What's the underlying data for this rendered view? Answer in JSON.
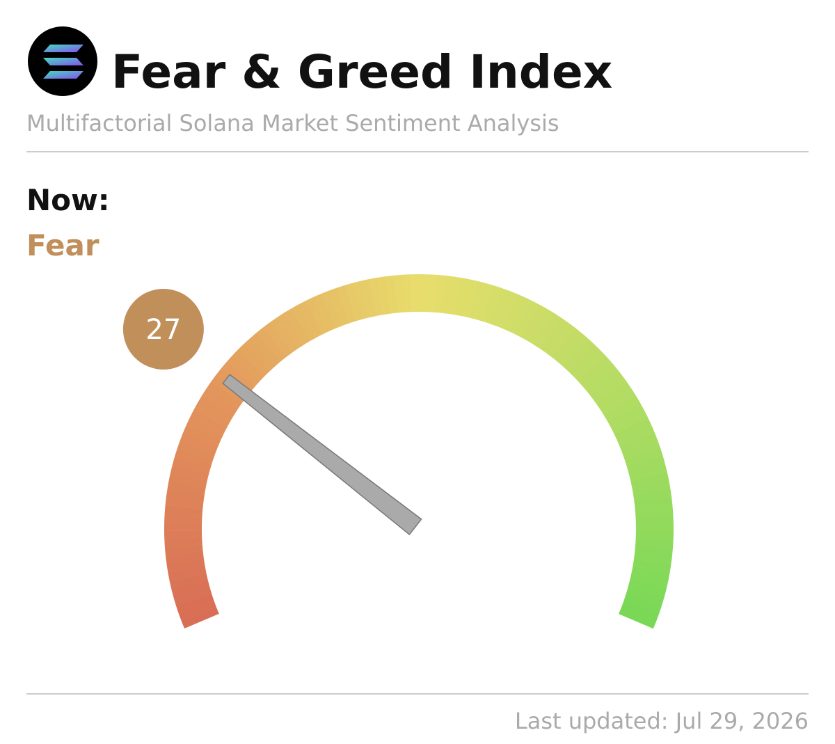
{
  "header": {
    "title": "Fear & Greed Index",
    "subtitle": "Multifactorial Solana Market Sentiment Analysis"
  },
  "now_label": "Now:",
  "status": "Fear",
  "status_color": "#c08f5a",
  "chart_data": {
    "type": "gauge",
    "value": 27,
    "range": [
      0,
      100
    ],
    "colors": [
      "#d86d55",
      "#e3955c",
      "#e8dd6c",
      "#b3dc63",
      "#78d856"
    ],
    "needle_color": "#aaaaaa"
  },
  "footer": "Last updated: Jul 29, 2026"
}
